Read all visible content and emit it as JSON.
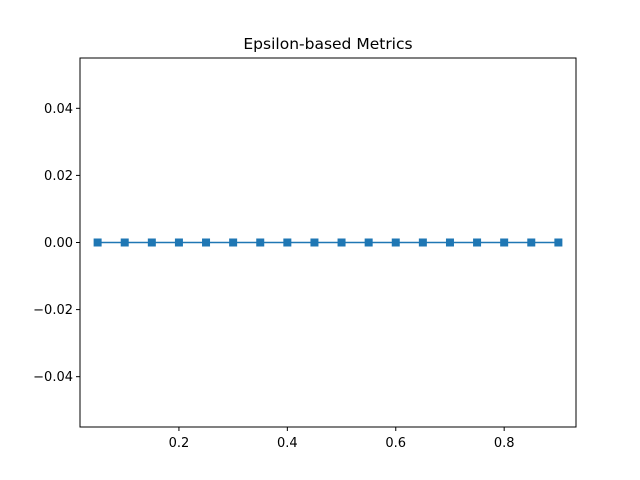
{
  "chart_data": {
    "type": "line",
    "title": "Epsilon-based Metrics",
    "xlabel": "",
    "ylabel": "",
    "xlim": [
      0.0175,
      0.9325
    ],
    "ylim": [
      -0.055,
      0.055
    ],
    "x_ticks": [
      0.2,
      0.4,
      0.6,
      0.8
    ],
    "x_tick_labels": [
      "0.2",
      "0.4",
      "0.6",
      "0.8"
    ],
    "y_ticks": [
      -0.04,
      -0.02,
      0.0,
      0.02,
      0.04
    ],
    "y_tick_labels": [
      "−0.04",
      "−0.02",
      "0.00",
      "0.02",
      "0.04"
    ],
    "grid": false,
    "legend": "none",
    "marker": "square",
    "color": "#1f77b4",
    "series": [
      {
        "x": [
          0.05,
          0.1,
          0.15,
          0.2,
          0.25,
          0.3,
          0.35,
          0.4,
          0.45,
          0.5,
          0.55,
          0.6,
          0.65,
          0.7,
          0.75,
          0.8,
          0.85,
          0.9
        ],
        "y": [
          0,
          0,
          0,
          0,
          0,
          0,
          0,
          0,
          0,
          0,
          0,
          0,
          0,
          0,
          0,
          0,
          0,
          0
        ]
      }
    ]
  }
}
